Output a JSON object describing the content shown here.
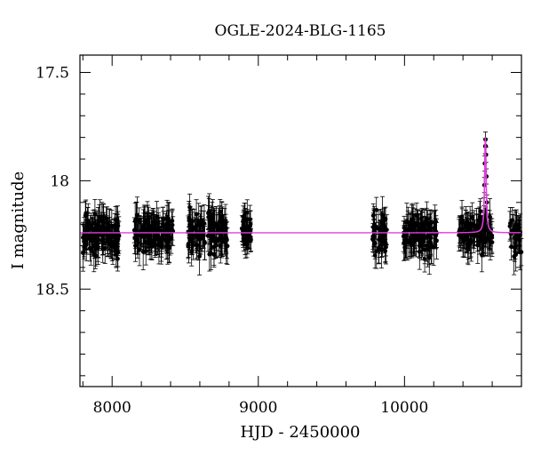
{
  "chart_data": {
    "type": "scatter",
    "title": "OGLE-2024-BLG-1165",
    "xlabel": "HJD - 2450000",
    "ylabel": "I magnitude",
    "xlim": [
      7780,
      10800
    ],
    "ylim": [
      18.95,
      17.42
    ],
    "y_inverted": true,
    "x_ticks": [
      8000,
      9000,
      10000
    ],
    "y_ticks": [
      17.5,
      18,
      18.5
    ],
    "grid": false,
    "legend": "none",
    "baseline_mag": 18.24,
    "series": [
      {
        "kind": "points_with_errorbars",
        "color": "#000000",
        "seasons": [
          {
            "x_start": 7800,
            "x_end": 8050,
            "y_center": 18.25,
            "y_spread": 0.08,
            "err": 0.07,
            "n": 130
          },
          {
            "x_start": 8150,
            "x_end": 8420,
            "y_center": 18.24,
            "y_spread": 0.07,
            "err": 0.07,
            "n": 130
          },
          {
            "x_start": 8520,
            "x_end": 8790,
            "y_center": 18.24,
            "y_spread": 0.08,
            "err": 0.07,
            "n": 130
          },
          {
            "x_start": 8880,
            "x_end": 8950,
            "y_center": 18.23,
            "y_spread": 0.08,
            "err": 0.06,
            "n": 40
          },
          {
            "x_start": 9780,
            "x_end": 9880,
            "y_center": 18.24,
            "y_spread": 0.08,
            "err": 0.07,
            "n": 50
          },
          {
            "x_start": 9990,
            "x_end": 10220,
            "y_center": 18.24,
            "y_spread": 0.08,
            "err": 0.07,
            "n": 110
          },
          {
            "x_start": 10360,
            "x_end": 10600,
            "y_center": 18.24,
            "y_spread": 0.07,
            "err": 0.07,
            "n": 100
          },
          {
            "x_start": 10720,
            "x_end": 10800,
            "y_center": 18.25,
            "y_spread": 0.08,
            "err": 0.07,
            "n": 30
          }
        ],
        "event_points": [
          {
            "x": 10546,
            "y": 18.02
          },
          {
            "x": 10549,
            "y": 17.92
          },
          {
            "x": 10552,
            "y": 17.84
          },
          {
            "x": 10554,
            "y": 17.81
          },
          {
            "x": 10556,
            "y": 17.84
          },
          {
            "x": 10558,
            "y": 17.88
          },
          {
            "x": 10561,
            "y": 17.98
          },
          {
            "x": 10564,
            "y": 18.1
          }
        ]
      },
      {
        "kind": "model_curve",
        "color": "#e43be0",
        "peak_x": 10553,
        "peak_mag": 17.8,
        "tE": 6
      }
    ]
  }
}
